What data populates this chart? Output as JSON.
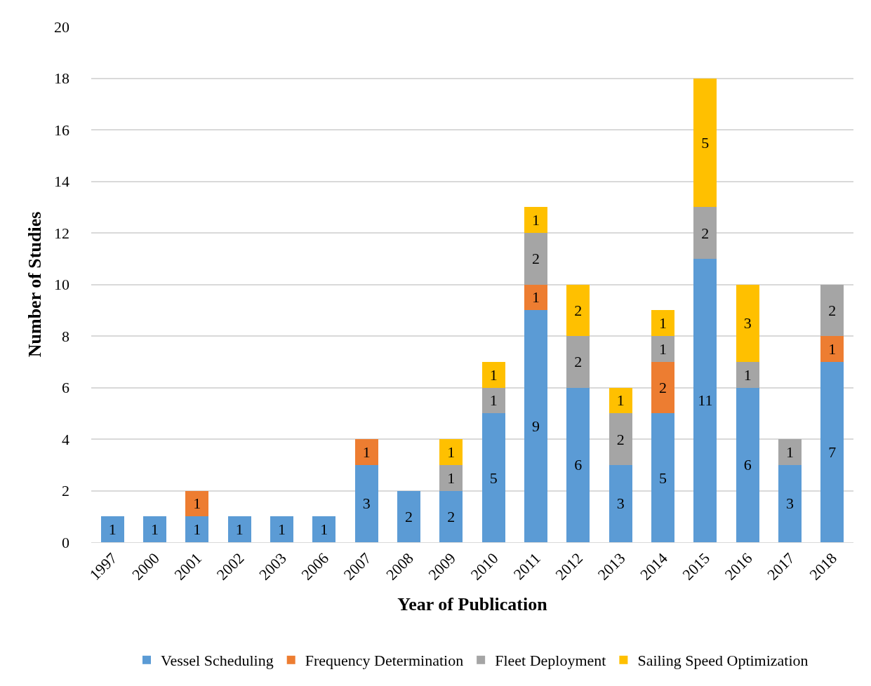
{
  "chart_data": {
    "type": "bar",
    "stacked": true,
    "xlabel": "Year of Publication",
    "ylabel": "Number of Studies",
    "categories": [
      "1997",
      "2000",
      "2001",
      "2002",
      "2003",
      "2006",
      "2007",
      "2008",
      "2009",
      "2010",
      "2011",
      "2012",
      "2013",
      "2014",
      "2015",
      "2016",
      "2017",
      "2018"
    ],
    "series": [
      {
        "name": "Vessel Scheduling",
        "color": "#5b9bd5",
        "values": [
          1,
          1,
          1,
          1,
          1,
          1,
          3,
          2,
          2,
          5,
          9,
          6,
          3,
          5,
          11,
          6,
          3,
          7
        ]
      },
      {
        "name": "Frequency Determination",
        "color": "#ed7d31",
        "values": [
          null,
          null,
          1,
          null,
          null,
          null,
          1,
          null,
          null,
          null,
          1,
          null,
          null,
          2,
          null,
          null,
          null,
          1
        ]
      },
      {
        "name": "Fleet Deployment",
        "color": "#a5a5a5",
        "values": [
          null,
          null,
          null,
          null,
          null,
          null,
          null,
          null,
          1,
          1,
          2,
          2,
          2,
          1,
          2,
          1,
          1,
          2
        ]
      },
      {
        "name": "Sailing Speed Optimization",
        "color": "#ffc000",
        "values": [
          null,
          null,
          null,
          null,
          null,
          null,
          null,
          null,
          1,
          1,
          1,
          2,
          1,
          1,
          5,
          3,
          null,
          null
        ]
      }
    ],
    "ylim": [
      0,
      20
    ],
    "yticks": [
      0,
      2,
      4,
      6,
      8,
      10,
      12,
      14,
      16,
      18,
      20
    ],
    "grid": "y",
    "legend": "bottom",
    "data_labels": true
  }
}
